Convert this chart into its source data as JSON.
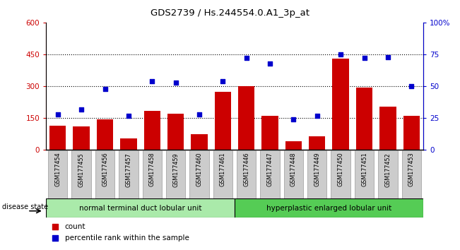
{
  "title": "GDS2739 / Hs.244554.0.A1_3p_at",
  "categories": [
    "GSM177454",
    "GSM177455",
    "GSM177456",
    "GSM177457",
    "GSM177458",
    "GSM177459",
    "GSM177460",
    "GSM177461",
    "GSM177446",
    "GSM177447",
    "GSM177448",
    "GSM177449",
    "GSM177450",
    "GSM177451",
    "GSM177452",
    "GSM177453"
  ],
  "counts": [
    115,
    110,
    145,
    55,
    185,
    170,
    75,
    275,
    300,
    160,
    40,
    65,
    430,
    295,
    205,
    160
  ],
  "percentiles": [
    28,
    32,
    48,
    27,
    54,
    53,
    28,
    54,
    72,
    68,
    24,
    27,
    75,
    72,
    73,
    50
  ],
  "group1_label": "normal terminal duct lobular unit",
  "group2_label": "hyperplastic enlarged lobular unit",
  "disease_state_label": "disease state",
  "left_ylim": [
    0,
    600
  ],
  "right_ylim": [
    0,
    100
  ],
  "left_yticks": [
    0,
    150,
    300,
    450,
    600
  ],
  "right_yticks": [
    0,
    25,
    50,
    75,
    100
  ],
  "right_yticklabels": [
    "0",
    "25",
    "50",
    "75",
    "100%"
  ],
  "bar_color": "#cc0000",
  "dot_color": "#0000cc",
  "tick_bg_color": "#cccccc",
  "group1_color": "#aaeaaa",
  "group2_color": "#55cc55",
  "legend_count_color": "#cc0000",
  "legend_pct_color": "#0000cc",
  "grid_dotted_vals": [
    150,
    300,
    450
  ],
  "n_group1": 8,
  "n_group2": 8
}
